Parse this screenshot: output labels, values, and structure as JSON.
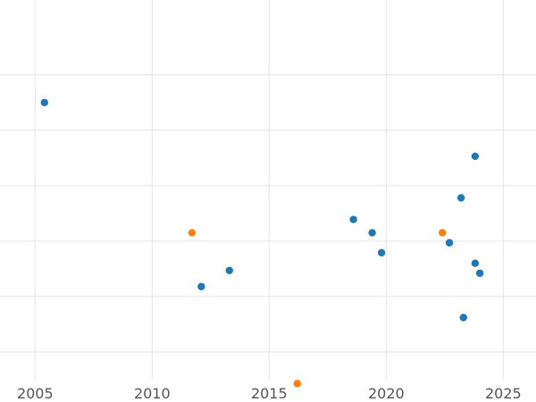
{
  "chart_data": {
    "type": "scatter",
    "title": "",
    "xlabel": "",
    "ylabel": "",
    "xlim": [
      2003.5,
      2026.4
    ],
    "ylim": [
      0.5,
      7.35
    ],
    "grid": true,
    "x_ticks": [
      2005,
      2010,
      2015,
      2020,
      2025
    ],
    "x_tick_labels": [
      "2005",
      "2010",
      "2015",
      "2020",
      "2025"
    ],
    "y_gridlines": [
      1.0,
      2.0,
      3.0,
      4.0,
      5.0,
      6.0
    ],
    "series": [
      {
        "color": "#1f77b4",
        "points": [
          {
            "x": 2005.4,
            "y": 5.5
          },
          {
            "x": 2012.1,
            "y": 2.18
          },
          {
            "x": 2013.3,
            "y": 2.47
          },
          {
            "x": 2018.6,
            "y": 3.39
          },
          {
            "x": 2019.4,
            "y": 3.15
          },
          {
            "x": 2019.8,
            "y": 2.79
          },
          {
            "x": 2022.7,
            "y": 2.97
          },
          {
            "x": 2023.2,
            "y": 3.78
          },
          {
            "x": 2023.3,
            "y": 1.62
          },
          {
            "x": 2023.8,
            "y": 4.53
          },
          {
            "x": 2023.8,
            "y": 2.6
          },
          {
            "x": 2024.0,
            "y": 2.42
          }
        ]
      },
      {
        "color": "#ff7f0e",
        "points": [
          {
            "x": 2011.7,
            "y": 3.15
          },
          {
            "x": 2016.2,
            "y": 0.43
          },
          {
            "x": 2022.4,
            "y": 3.15
          }
        ]
      }
    ]
  }
}
